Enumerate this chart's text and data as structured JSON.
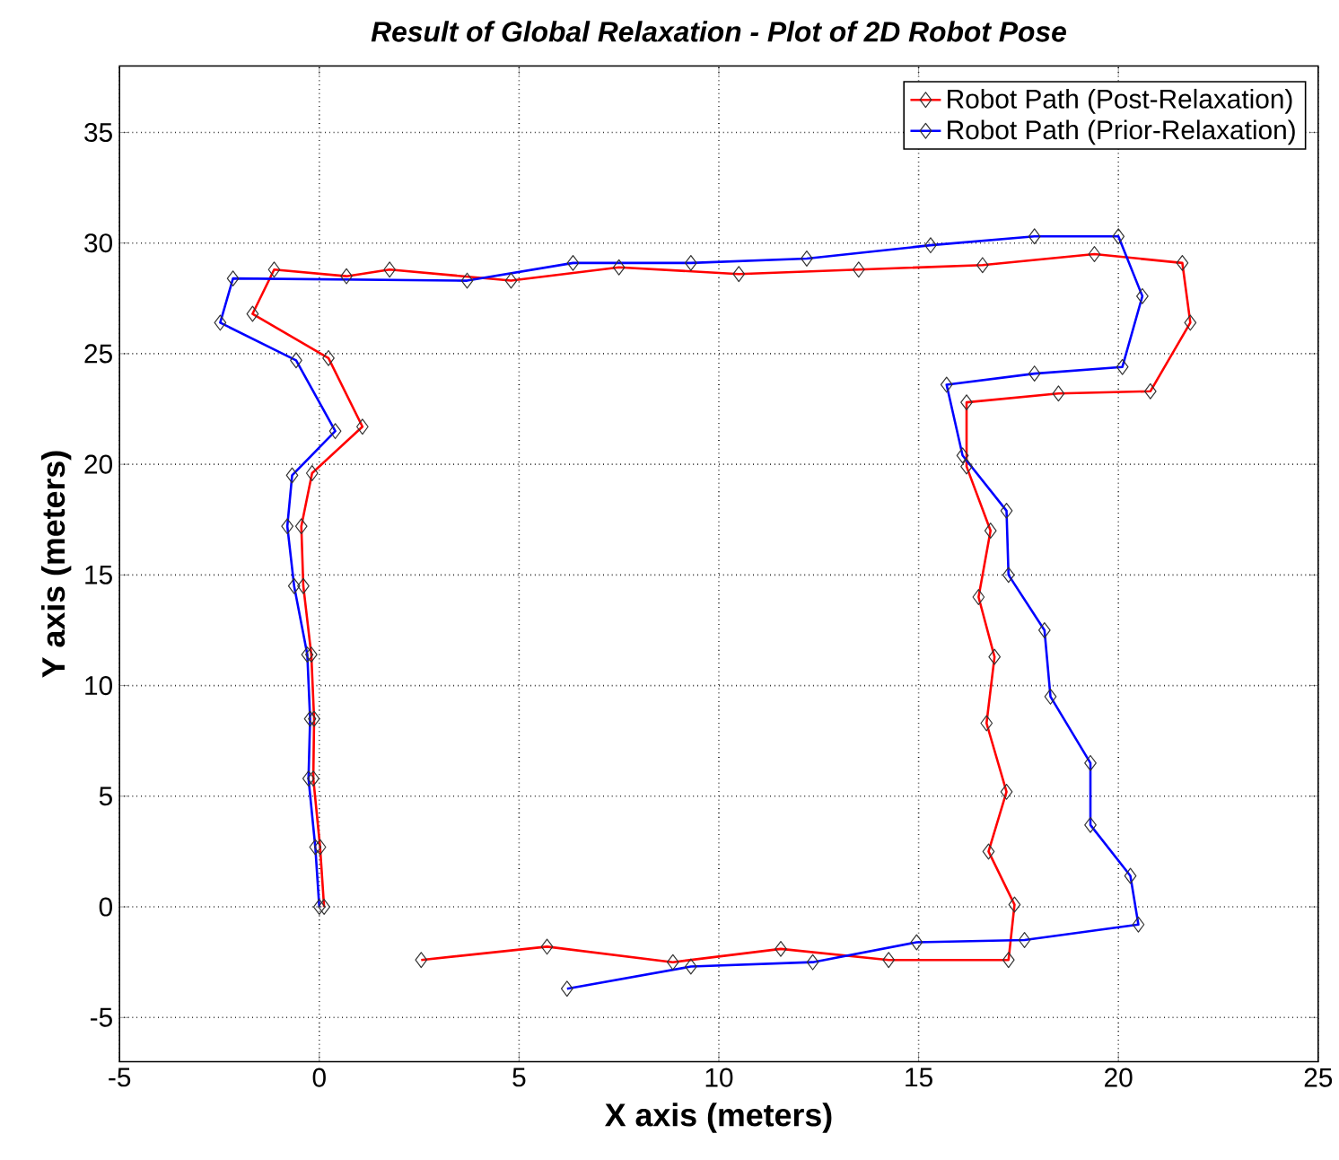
{
  "chart_data": {
    "type": "line",
    "title": "Result of Global Relaxation - Plot of 2D Robot Pose",
    "xlabel": "X axis (meters)",
    "ylabel": "Y axis (meters)",
    "xlim": [
      -5,
      25
    ],
    "ylim": [
      -7,
      38
    ],
    "xticks": [
      -5,
      0,
      5,
      10,
      15,
      20,
      25
    ],
    "yticks": [
      -5,
      0,
      5,
      10,
      15,
      20,
      25,
      30,
      35
    ],
    "grid": true,
    "legend": "top right",
    "marker": "diamond",
    "line_style": "solid",
    "series": [
      {
        "name": "Robot Path (Post-Relaxation)",
        "color": "#ff0000",
        "x": [
          0.12,
          0.02,
          -0.15,
          -0.13,
          -0.2,
          -0.4,
          -0.45,
          -0.18,
          1.08,
          0.23,
          -1.67,
          -1.13,
          0.68,
          1.76,
          4.8,
          7.5,
          10.5,
          13.5,
          16.6,
          19.4,
          21.6,
          21.8,
          20.8,
          18.5,
          16.2,
          16.2,
          16.8,
          16.5,
          16.9,
          16.7,
          17.2,
          16.75,
          17.4,
          17.25,
          14.25,
          11.55,
          8.85,
          5.7,
          2.55
        ],
        "values": [
          0,
          2.7,
          5.8,
          8.5,
          11.4,
          14.5,
          17.2,
          19.6,
          21.7,
          24.8,
          26.8,
          28.8,
          28.5,
          28.8,
          28.3,
          28.9,
          28.6,
          28.8,
          29.0,
          29.5,
          29.1,
          26.4,
          23.3,
          23.2,
          22.8,
          19.9,
          17.0,
          14.0,
          11.3,
          8.3,
          5.2,
          2.5,
          0.1,
          -2.4,
          -2.4,
          -1.9,
          -2.5,
          -1.8,
          -2.4
        ]
      },
      {
        "name": "Robot Path (Prior-Relaxation)",
        "color": "#0000ff",
        "x": [
          0,
          -0.1,
          -0.27,
          -0.23,
          -0.3,
          -0.63,
          -0.8,
          -0.68,
          0.4,
          -0.58,
          -2.48,
          -2.16,
          3.7,
          6.35,
          9.3,
          12.2,
          15.3,
          17.9,
          20.0,
          20.6,
          20.1,
          17.9,
          15.7,
          16.1,
          17.2,
          17.25,
          18.15,
          18.3,
          19.3,
          19.3,
          20.3,
          20.5,
          17.65,
          14.95,
          12.35,
          9.3,
          6.2
        ],
        "values": [
          0,
          2.7,
          5.8,
          8.5,
          11.4,
          14.5,
          17.2,
          19.5,
          21.5,
          24.7,
          26.4,
          28.4,
          28.3,
          29.1,
          29.1,
          29.3,
          29.9,
          30.3,
          30.3,
          27.6,
          24.4,
          24.1,
          23.6,
          20.4,
          17.9,
          15.0,
          12.5,
          9.5,
          6.5,
          3.7,
          1.4,
          -0.8,
          -1.5,
          -1.6,
          -2.5,
          -2.7,
          -3.7
        ]
      }
    ]
  }
}
